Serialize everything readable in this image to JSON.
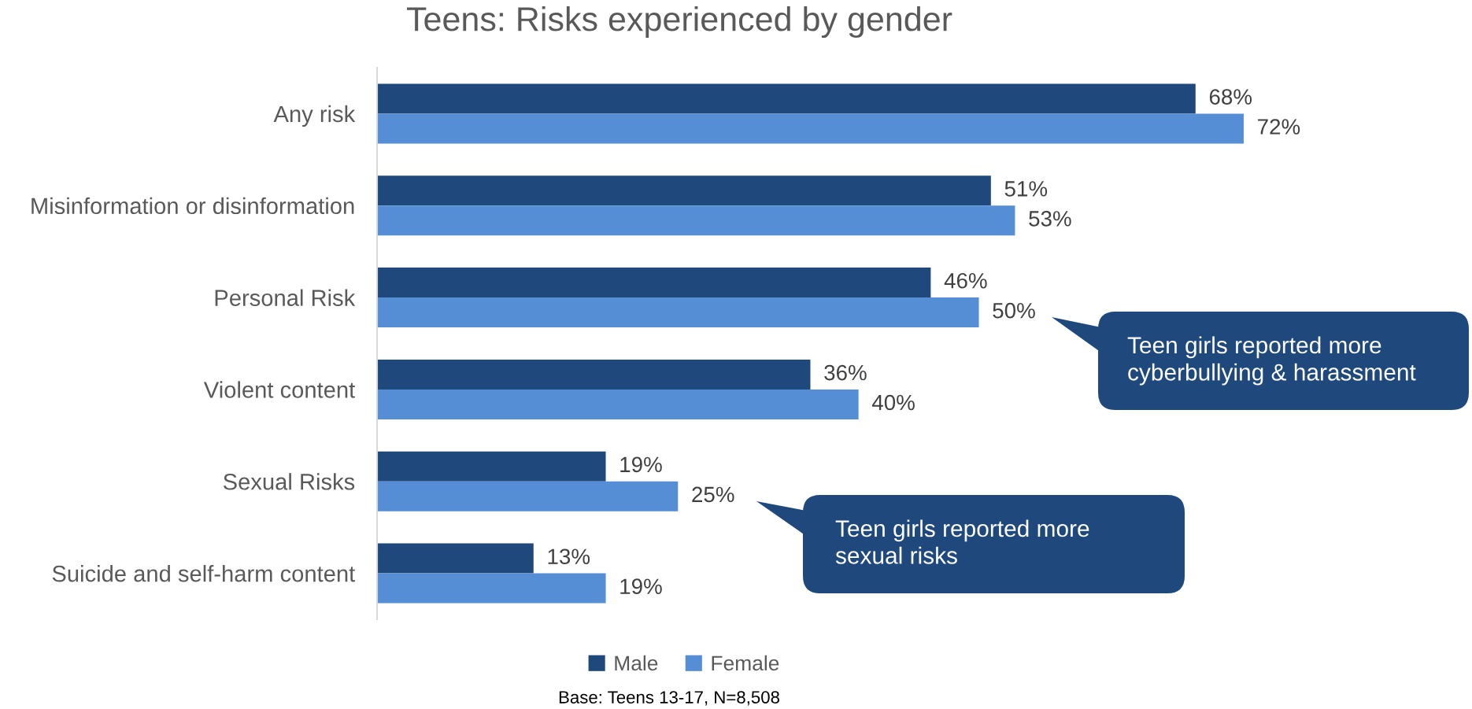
{
  "chart_data": {
    "type": "bar",
    "orientation": "horizontal",
    "title": "Teens: Risks experienced by gender",
    "categories": [
      "Any risk",
      "Misinformation or disinformation",
      "Personal Risk",
      "Violent content",
      "Sexual Risks",
      "Suicide and self-harm content"
    ],
    "series": [
      {
        "name": "Male",
        "color": "#1f497d",
        "values": [
          68,
          51,
          46,
          36,
          19,
          13
        ],
        "value_labels": [
          "68%",
          "51%",
          "46%",
          "36%",
          "19%",
          "13%"
        ]
      },
      {
        "name": "Female",
        "color": "#558ed5",
        "values": [
          72,
          53,
          50,
          40,
          25,
          19
        ],
        "value_labels": [
          "72%",
          "53%",
          "50%",
          "40%",
          "25%",
          "19%"
        ]
      }
    ],
    "tick_labels": "y",
    "legend": "bottom",
    "annotations": [
      "Teen girls reported more\ncyberbullying & harassment",
      "Teen girls reported more\nsexual risks",
      "Base: Teens 13-17, N=8,508"
    ]
  }
}
